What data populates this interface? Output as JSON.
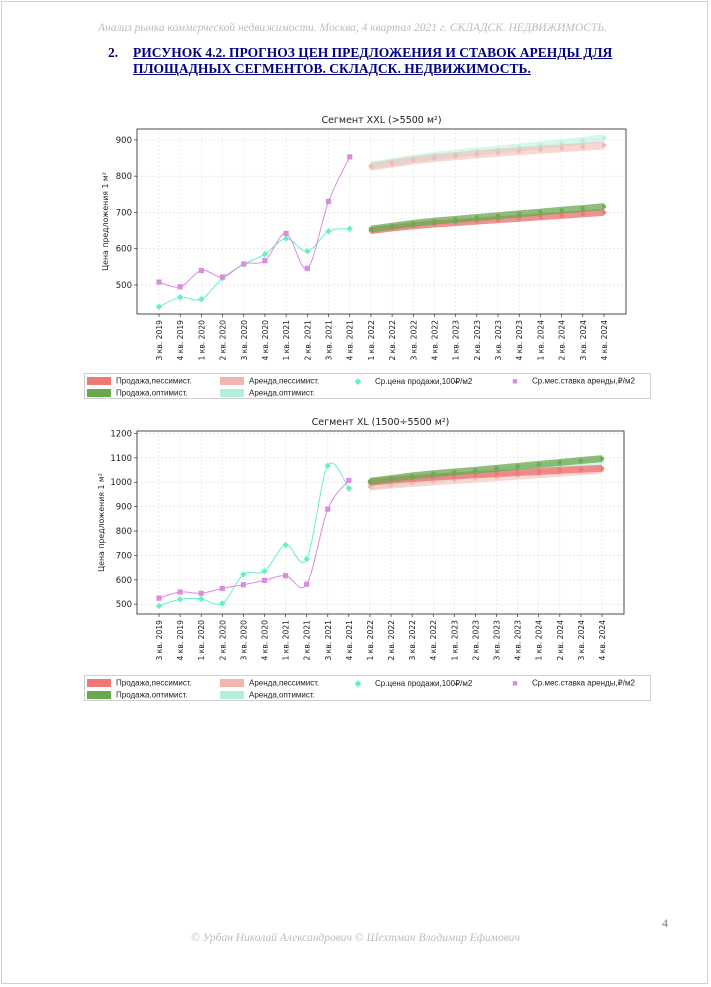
{
  "header": "Анализ рынка коммерческой недвижимости.  Москва,  4 квартал 2021 г.  СКЛАДСК. НЕДВИЖИМОСТЬ.",
  "figure": {
    "number": "2.",
    "title": "РИСУНОК 4.2. ПРОГНОЗ ЦЕН ПРЕДЛОЖЕНИЯ И СТАВОК АРЕНДЫ ДЛЯ ПЛОЩАДНЫХ СЕГМЕНТОВ.  СКЛАДСК. НЕДВИЖИМОСТЬ."
  },
  "legend": {
    "sale_pess": "Продажа,пессимист.",
    "sale_opt": "Продажа,оптимист.",
    "rent_pess": "Аренда,пессимист.",
    "rent_opt": "Аренда,оптимист.",
    "price_marker": "Ср.цена продажи,100₽/м2",
    "rent_marker": "Ср.мес.ставка аренды,₽/м2",
    "colors": {
      "sale_pess": "#ee7777",
      "sale_opt": "#6aa84f",
      "rent_pess": "#f4b6b0",
      "rent_opt": "#b2f0dc",
      "price_marker": "#66f0c8",
      "rent_marker": "#d98ce0"
    }
  },
  "page_number": "4",
  "footer": "© Урбан Николай Александрович   © Шехтман Владимир Ефимович",
  "chart_data": [
    {
      "type": "line",
      "title": "Сегмент XXL (>5500 м²)",
      "ylabel": "Цена предложения 1 м²",
      "ylim": [
        420,
        930
      ],
      "yticks": [
        500,
        600,
        700,
        800,
        900
      ],
      "grid": true,
      "legend_position": "bottom",
      "categories": [
        "3 кв. 2019",
        "4 кв. 2019",
        "1 кв. 2020",
        "2 кв. 2020",
        "3 кв. 2020",
        "4 кв. 2020",
        "1 кв. 2021",
        "2 кв. 2021",
        "3 кв. 2021",
        "4 кв. 2021",
        "1 кв. 2022",
        "2 кв. 2022",
        "3 кв. 2022",
        "4 кв. 2022",
        "1 кв. 2023",
        "2 кв. 2023",
        "3 кв. 2023",
        "4 кв. 2023",
        "1 кв. 2024",
        "2 кв. 2024",
        "3 кв. 2024",
        "4 кв. 2024"
      ],
      "series": [
        {
          "name": "Ср.цена продажи,100₽/м2",
          "kind": "marker",
          "values": [
            440,
            466,
            461,
            519,
            557,
            585,
            628,
            593,
            648,
            655,
            null,
            null,
            null,
            null,
            null,
            null,
            null,
            null,
            null,
            null,
            null,
            null
          ]
        },
        {
          "name": "Ср.мес.ставка аренды,₽/м2",
          "kind": "marker",
          "values": [
            508,
            495,
            540,
            522,
            558,
            567,
            642,
            546,
            730,
            853,
            null,
            null,
            null,
            null,
            null,
            null,
            null,
            null,
            null,
            null,
            null,
            null
          ]
        },
        {
          "name": "Продажа,пессимист.",
          "kind": "band",
          "values": [
            null,
            null,
            null,
            null,
            null,
            null,
            null,
            null,
            null,
            null,
            650,
            657,
            663,
            668,
            672,
            676,
            680,
            684,
            688,
            692,
            696,
            700
          ]
        },
        {
          "name": "Продажа,оптимист.",
          "kind": "band",
          "values": [
            null,
            null,
            null,
            null,
            null,
            null,
            null,
            null,
            null,
            null,
            654,
            662,
            670,
            676,
            681,
            686,
            691,
            696,
            701,
            706,
            711,
            716
          ]
        },
        {
          "name": "Аренда,пессимист.",
          "kind": "band",
          "values": [
            null,
            null,
            null,
            null,
            null,
            null,
            null,
            null,
            null,
            null,
            826,
            835,
            843,
            850,
            855,
            860,
            865,
            869,
            873,
            877,
            881,
            885
          ]
        },
        {
          "name": "Аренда,оптимист.",
          "kind": "band",
          "values": [
            null,
            null,
            null,
            null,
            null,
            null,
            null,
            null,
            null,
            null,
            829,
            839,
            848,
            856,
            862,
            868,
            873,
            879,
            885,
            891,
            897,
            905
          ]
        }
      ]
    },
    {
      "type": "line",
      "title": "Сегмент XL (1500÷5500 м²)",
      "ylabel": "Цена предложения 1 м²",
      "ylim": [
        460,
        1210
      ],
      "yticks": [
        500,
        600,
        700,
        800,
        900,
        1000,
        1100,
        1200
      ],
      "grid": true,
      "legend_position": "bottom",
      "categories": [
        "3 кв. 2019",
        "4 кв. 2019",
        "1 кв. 2020",
        "2 кв. 2020",
        "3 кв. 2020",
        "4 кв. 2020",
        "1 кв. 2021",
        "2 кв. 2021",
        "3 кв. 2021",
        "4 кв. 2021",
        "1 кв. 2022",
        "2 кв. 2022",
        "3 кв. 2022",
        "4 кв. 2022",
        "1 кв. 2023",
        "2 кв. 2023",
        "3 кв. 2023",
        "4 кв. 2023",
        "1 кв. 2024",
        "2 кв. 2024",
        "3 кв. 2024",
        "4 кв. 2024"
      ],
      "series": [
        {
          "name": "Ср.цена продажи,100₽/м2",
          "kind": "marker",
          "values": [
            493,
            520,
            522,
            503,
            622,
            635,
            743,
            685,
            1068,
            975,
            null,
            null,
            null,
            null,
            null,
            null,
            null,
            null,
            null,
            null,
            null,
            null
          ]
        },
        {
          "name": "Ср.мес.ставка аренды,₽/м2",
          "kind": "marker",
          "values": [
            525,
            550,
            545,
            565,
            580,
            598,
            617,
            582,
            890,
            1007,
            null,
            null,
            null,
            null,
            null,
            null,
            null,
            null,
            null,
            null,
            null,
            null
          ]
        },
        {
          "name": "Продажа,пессимист.",
          "kind": "band",
          "values": [
            null,
            null,
            null,
            null,
            null,
            null,
            null,
            null,
            null,
            null,
            1000,
            1008,
            1015,
            1021,
            1026,
            1031,
            1035,
            1040,
            1044,
            1049,
            1053,
            1057
          ]
        },
        {
          "name": "Продажа,оптимист.",
          "kind": "band",
          "values": [
            null,
            null,
            null,
            null,
            null,
            null,
            null,
            null,
            null,
            null,
            1004,
            1015,
            1026,
            1035,
            1042,
            1049,
            1057,
            1065,
            1073,
            1081,
            1089,
            1097
          ]
        },
        {
          "name": "Аренда,пессимист.",
          "kind": "band",
          "values": [
            null,
            null,
            null,
            null,
            null,
            null,
            null,
            null,
            null,
            null,
            982,
            990,
            997,
            1003,
            1009,
            1015,
            1021,
            1027,
            1033,
            1039,
            1045,
            1050
          ]
        },
        {
          "name": "Аренда,оптимист.",
          "kind": "band",
          "values": [
            null,
            null,
            null,
            null,
            null,
            null,
            null,
            null,
            null,
            null,
            984,
            995,
            1005,
            1015,
            1025,
            1034,
            1043,
            1052,
            1061,
            1070,
            1079,
            1087
          ]
        }
      ]
    }
  ]
}
